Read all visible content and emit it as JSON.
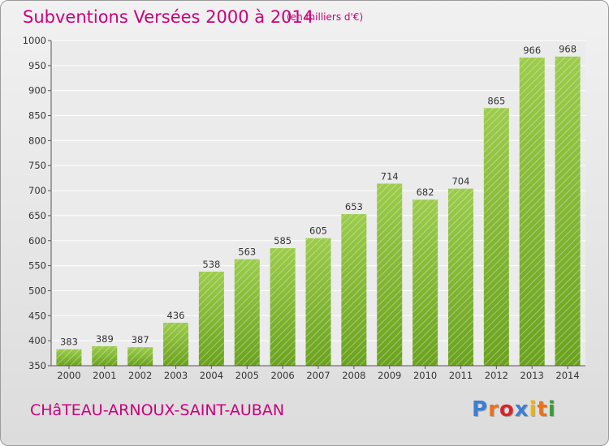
{
  "header": {
    "title": "Subventions Versées 2000 à 2014",
    "subtitle": "(en milliers d'€)"
  },
  "footer": {
    "commune": "CHâTEAU-ARNOUX-SAINT-AUBAN",
    "logo_text": "Proxiti",
    "logo_colors": [
      "#3a7fd5",
      "#e8731a",
      "#d6262b",
      "#3a7fd5",
      "#f0b400",
      "#e8731a",
      "#3a9a3a"
    ]
  },
  "colors": {
    "bar_light": "#9ccc4c",
    "bar_dark": "#6aa21e",
    "accent": "#c8007c"
  },
  "chart_data": {
    "type": "bar",
    "categories": [
      "2000",
      "2001",
      "2002",
      "2003",
      "2004",
      "2005",
      "2006",
      "2007",
      "2008",
      "2009",
      "2010",
      "2011",
      "2012",
      "2013",
      "2014"
    ],
    "values": [
      383,
      389,
      387,
      436,
      538,
      563,
      585,
      605,
      653,
      714,
      682,
      704,
      865,
      966,
      968
    ],
    "title": "Subventions Versées 2000 à 2014",
    "subtitle": "(en milliers d'€)",
    "ylim": [
      350,
      1000
    ],
    "yticks": [
      350,
      400,
      450,
      500,
      550,
      600,
      650,
      700,
      750,
      800,
      850,
      900,
      950,
      1000
    ],
    "grid": true,
    "data_labels": true
  }
}
